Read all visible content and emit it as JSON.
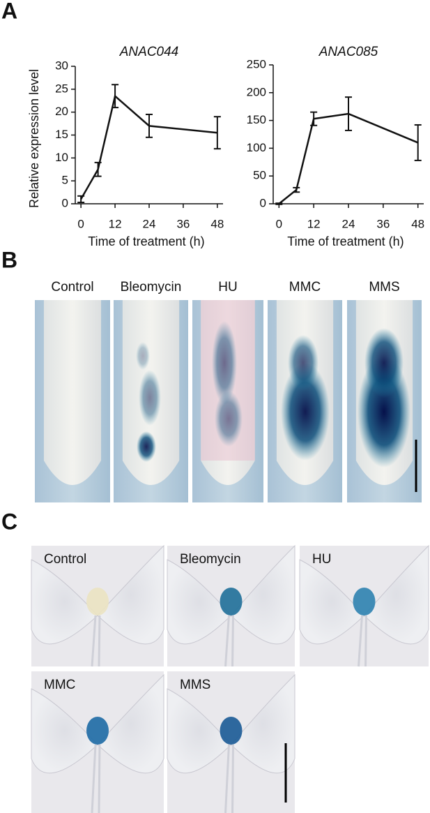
{
  "panel_labels": [
    "A",
    "B",
    "C"
  ],
  "chart_data": [
    {
      "type": "line",
      "title": "ANAC044",
      "x_label": "Time of treatment (h)",
      "y_label": "Relative expression level",
      "x": [
        0,
        6,
        12,
        24,
        48
      ],
      "values": [
        1,
        7.5,
        23.5,
        17,
        15.5
      ],
      "errors": [
        0.7,
        1.5,
        2.5,
        2.5,
        3.5
      ],
      "color": "#111111",
      "xlim": [
        -2,
        50
      ],
      "xticks": [
        0,
        12,
        24,
        36,
        48
      ],
      "ylim": [
        0,
        30
      ],
      "yticks": [
        0,
        5,
        10,
        15,
        20,
        25,
        30
      ]
    },
    {
      "type": "line",
      "title": "ANAC085",
      "x_label": "Time of treatment (h)",
      "x": [
        0,
        6,
        12,
        24,
        48
      ],
      "values": [
        0,
        25,
        153,
        162,
        110
      ],
      "errors": [
        1,
        4,
        12,
        30,
        32
      ],
      "color": "#111111",
      "xlim": [
        -2,
        50
      ],
      "xticks": [
        0,
        12,
        24,
        36,
        48
      ],
      "ylim": [
        0,
        250
      ],
      "yticks": [
        0,
        50,
        100,
        150,
        200,
        250
      ]
    }
  ],
  "panel_b": {
    "conditions": [
      "Control",
      "Bleomycin",
      "HU",
      "MMC",
      "MMS"
    ]
  },
  "panel_c": {
    "conditions": [
      "Control",
      "Bleomycin",
      "HU",
      "MMC",
      "MMS"
    ]
  }
}
